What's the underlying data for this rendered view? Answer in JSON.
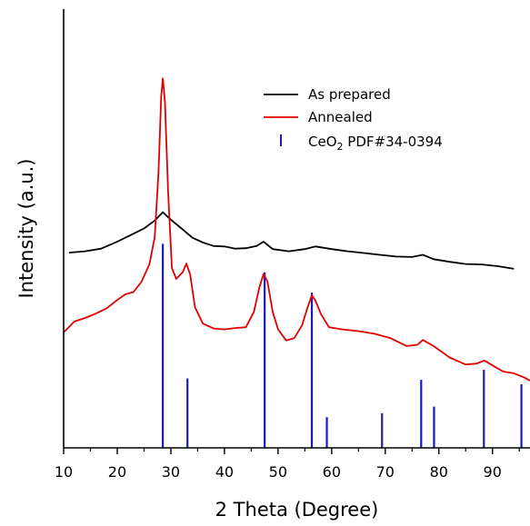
{
  "chart_data": {
    "type": "line",
    "xlabel": "2 Theta (Degree)",
    "ylabel": "Intensity (a.u.)",
    "xlim": [
      10,
      97
    ],
    "ylim": [
      0,
      100
    ],
    "x_ticks": [
      10,
      20,
      30,
      40,
      50,
      60,
      70,
      80,
      90
    ],
    "grid": false,
    "legend_position": "top-right",
    "colors": {
      "as_prepared": "#000000",
      "annealed": "#e00000",
      "reference": "#1a1abf"
    },
    "series": [
      {
        "name": "As prepared",
        "color": "#000000",
        "points": [
          [
            11,
            44.5
          ],
          [
            14,
            44.8
          ],
          [
            17,
            45.4
          ],
          [
            20,
            47.0
          ],
          [
            23,
            48.8
          ],
          [
            25,
            50.0
          ],
          [
            27,
            51.8
          ],
          [
            28.5,
            53.7
          ],
          [
            30,
            52.0
          ],
          [
            32,
            50.0
          ],
          [
            34,
            47.9
          ],
          [
            36,
            46.8
          ],
          [
            38,
            46.0
          ],
          [
            40,
            45.9
          ],
          [
            42,
            45.4
          ],
          [
            44,
            45.5
          ],
          [
            46,
            46.0
          ],
          [
            47.3,
            47.0
          ],
          [
            49,
            45.3
          ],
          [
            52,
            44.8
          ],
          [
            55,
            45.3
          ],
          [
            57,
            45.9
          ],
          [
            60,
            45.3
          ],
          [
            63,
            44.8
          ],
          [
            66,
            44.4
          ],
          [
            69,
            44.0
          ],
          [
            72,
            43.6
          ],
          [
            75,
            43.5
          ],
          [
            77,
            44.0
          ],
          [
            79,
            43.0
          ],
          [
            82,
            42.4
          ],
          [
            85,
            41.9
          ],
          [
            88,
            41.8
          ],
          [
            91,
            41.4
          ],
          [
            94,
            40.8
          ]
        ]
      },
      {
        "name": "Annealed",
        "color": "#e00000",
        "points": [
          [
            10,
            26.3
          ],
          [
            12,
            28.8
          ],
          [
            14,
            29.6
          ],
          [
            16,
            30.6
          ],
          [
            18,
            31.8
          ],
          [
            20,
            33.7
          ],
          [
            21.5,
            35.0
          ],
          [
            23,
            35.5
          ],
          [
            24.5,
            37.8
          ],
          [
            26,
            41.8
          ],
          [
            27,
            48.0
          ],
          [
            27.7,
            63.0
          ],
          [
            28.2,
            80.0
          ],
          [
            28.5,
            84.2
          ],
          [
            28.9,
            79.0
          ],
          [
            29.5,
            58.0
          ],
          [
            30.2,
            41.0
          ],
          [
            31,
            38.5
          ],
          [
            32.2,
            40.0
          ],
          [
            32.9,
            42.0
          ],
          [
            33.6,
            39.5
          ],
          [
            34.5,
            32.0
          ],
          [
            36,
            28.3
          ],
          [
            38,
            27.2
          ],
          [
            40,
            27.0
          ],
          [
            42,
            27.3
          ],
          [
            44,
            27.5
          ],
          [
            45.5,
            31.0
          ],
          [
            46.5,
            36.5
          ],
          [
            47.3,
            39.6
          ],
          [
            48,
            38.0
          ],
          [
            49,
            31.0
          ],
          [
            50,
            27.0
          ],
          [
            51.5,
            24.5
          ],
          [
            53,
            25.0
          ],
          [
            54.5,
            28.0
          ],
          [
            55.5,
            32.0
          ],
          [
            56.3,
            34.8
          ],
          [
            57,
            33.5
          ],
          [
            58,
            30.5
          ],
          [
            59.5,
            27.5
          ],
          [
            62,
            27.0
          ],
          [
            65,
            26.6
          ],
          [
            68,
            26.0
          ],
          [
            71,
            25.0
          ],
          [
            74,
            23.2
          ],
          [
            76,
            23.5
          ],
          [
            77,
            24.6
          ],
          [
            79,
            23.2
          ],
          [
            82,
            20.6
          ],
          [
            85,
            19.0
          ],
          [
            87,
            19.2
          ],
          [
            88.5,
            19.9
          ],
          [
            90,
            18.8
          ],
          [
            92,
            17.4
          ],
          [
            94,
            17.0
          ],
          [
            96,
            16.0
          ],
          [
            97,
            15.3
          ]
        ]
      }
    ],
    "reference_bars": {
      "name": "CeO",
      "name_subscript": "2",
      "name_suffix": " PDF#34-0394",
      "color": "#1a1abf",
      "x": [
        28.5,
        33.1,
        47.5,
        56.3,
        59.1,
        69.4,
        76.7,
        79.1,
        88.4,
        95.4
      ],
      "heights": [
        46.5,
        15.8,
        40.0,
        35.4,
        7.0,
        7.9,
        15.5,
        9.4,
        17.8,
        14.5
      ]
    }
  }
}
